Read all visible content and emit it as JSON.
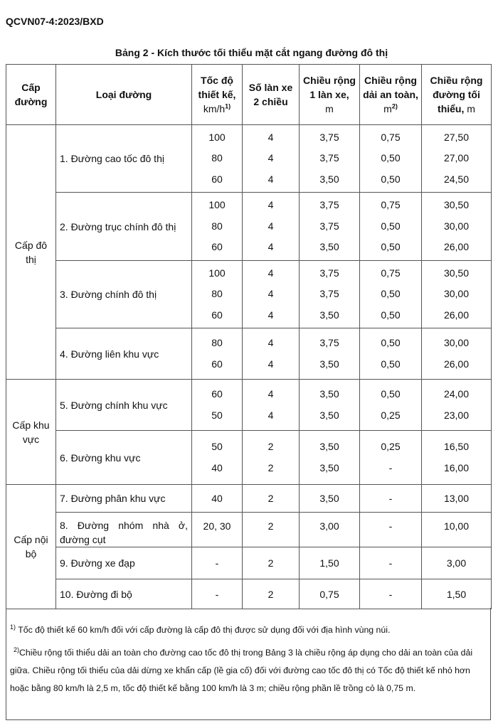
{
  "doc_code": "QCVN07-4:2023/BXD",
  "caption": "Bảng 2 - Kích thước tối thiểu mặt cắt ngang đường đô thị",
  "headers": {
    "level": "Cấp đường",
    "road_type": "Loại đường",
    "speed": "Tốc độ thiết kế,",
    "speed_unit": "km/h",
    "speed_sup": "1)",
    "lanes": "Số làn xe 2 chiều",
    "lane_width": "Chiều rộng 1 làn xe,",
    "lane_width_unit": "m",
    "safety": "Chiều rộng dải an toàn,",
    "safety_unit": "m",
    "safety_sup": "2)",
    "min_width": "Chiều rộng đường tối thiểu,",
    "min_width_unit": "m"
  },
  "groups": [
    {
      "label": "Cấp đô thị",
      "roads": [
        {
          "name": "1. Đường cao tốc đô thị",
          "rows": [
            [
              "100",
              "4",
              "3,75",
              "0,75",
              "27,50"
            ],
            [
              "80",
              "4",
              "3,75",
              "0,50",
              "27,00"
            ],
            [
              "60",
              "4",
              "3,50",
              "0,50",
              "24,50"
            ]
          ]
        },
        {
          "name": "2. Đường trục chính đô thị",
          "rows": [
            [
              "100",
              "4",
              "3,75",
              "0,75",
              "30,50"
            ],
            [
              "80",
              "4",
              "3,75",
              "0,50",
              "30,00"
            ],
            [
              "60",
              "4",
              "3,50",
              "0,50",
              "26,00"
            ]
          ]
        },
        {
          "name": "3. Đường chính đô thị",
          "rows": [
            [
              "100",
              "4",
              "3,75",
              "0,75",
              "30,50"
            ],
            [
              "80",
              "4",
              "3,75",
              "0,50",
              "30,00"
            ],
            [
              "60",
              "4",
              "3,50",
              "0,50",
              "26,00"
            ]
          ]
        },
        {
          "name": "4. Đường liên khu vực",
          "rows": [
            [
              "80",
              "4",
              "3,75",
              "0,50",
              "30,00"
            ],
            [
              "60",
              "4",
              "3,50",
              "0,50",
              "26,00"
            ]
          ]
        }
      ]
    },
    {
      "label": "Cấp khu vực",
      "roads": [
        {
          "name": "5. Đường chính khu vực",
          "rows": [
            [
              "60",
              "4",
              "3,50",
              "0,50",
              "24,00"
            ],
            [
              "50",
              "4",
              "3,50",
              "0,25",
              "23,00"
            ]
          ]
        },
        {
          "name": "6. Đường khu vực",
          "rows": [
            [
              "50",
              "2",
              "3,50",
              "0,25",
              "16,50"
            ],
            [
              "40",
              "2",
              "3,50",
              "-",
              "16,00"
            ]
          ]
        }
      ]
    },
    {
      "label": "Cấp nội bộ",
      "roads": [
        {
          "name": "7. Đường phân khu vực",
          "rows": [
            [
              "40",
              "2",
              "3,50",
              "-",
              "13,00"
            ]
          ]
        },
        {
          "name": "8. Đường nhóm nhà ở, đường cụt",
          "rows": [
            [
              "20, 30",
              "2",
              "3,00",
              "-",
              "10,00"
            ]
          ]
        },
        {
          "name": "9. Đường xe đạp",
          "rows": [
            [
              "-",
              "2",
              "1,50",
              "-",
              "3,00"
            ]
          ]
        },
        {
          "name": "10. Đường đi bộ",
          "rows": [
            [
              "-",
              "2",
              "0,75",
              "-",
              "1,50"
            ]
          ]
        }
      ]
    }
  ],
  "notes": [
    {
      "sup": "1)",
      "text": "Tốc độ thiết kế 60 km/h đối với cấp đường là cấp đô thị được sử dụng đối với địa hình vùng núi."
    },
    {
      "sup": "2)",
      "text": "Chiều rộng tối thiểu dải an toàn cho đường cao tốc đô thị trong Bảng 3 là chiều rộng áp dụng cho dải an toàn của dải giữa. Chiều rộng tối thiểu của dải dừng xe khẩn cấp (lề gia cố) đối với đường cao tốc đô thị có Tốc độ thiết kế nhỏ hơn hoặc bằng 80 km/h là 2,5 m, tốc độ thiết kế bằng 100 km/h là 3 m; chiều rộng phần lề trồng cỏ là 0,75 m."
    }
  ]
}
